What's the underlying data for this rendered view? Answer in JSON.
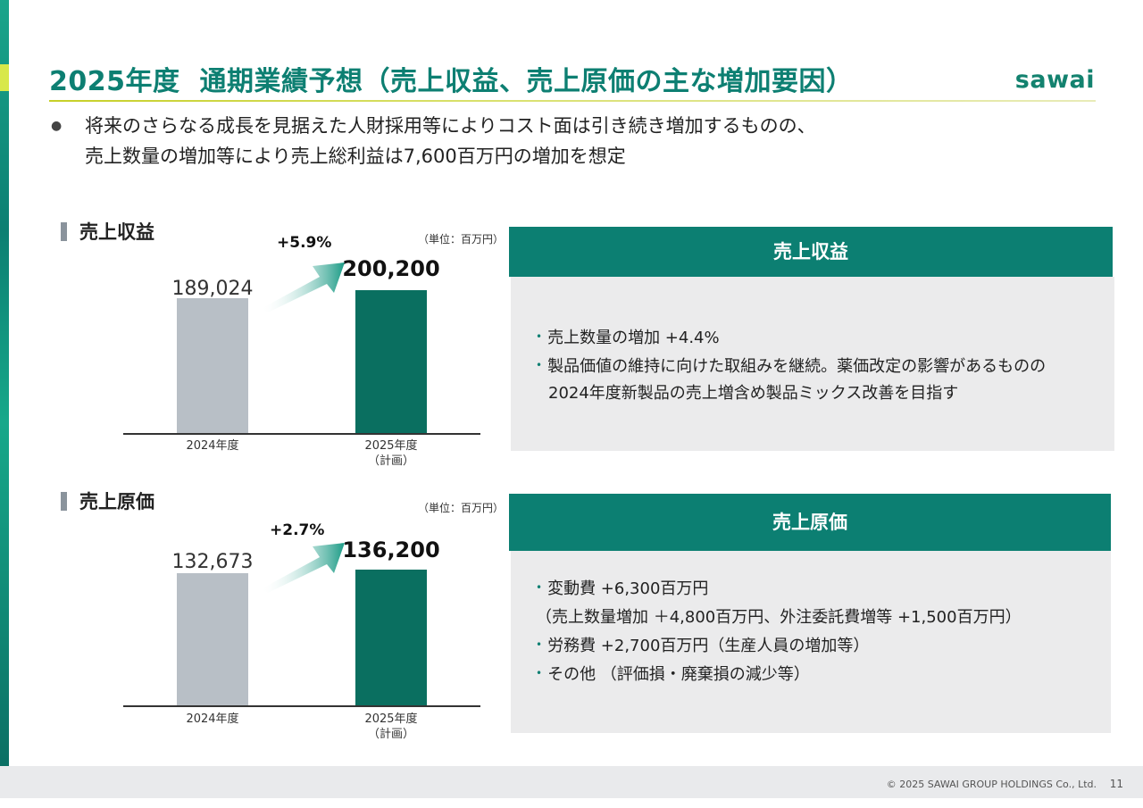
{
  "header": {
    "title_year": "2025年度",
    "title_main": "通期業績予想（売上収益、売上原価の主な増加要因）",
    "logo": "sawai"
  },
  "intro": {
    "bullet": "●",
    "line1": "将来のさらなる成長を見据えた人財採用等によりコスト面は引き続き増加するものの、",
    "line2": "売上数量の増加等により売上総利益は7,600百万円の増加を想定"
  },
  "revenue_chart": {
    "label": "売上収益",
    "unit": "（単位：百万円）",
    "growth": "+5.9%",
    "prev_value": "189,024",
    "plan_value": "200,200",
    "x_prev": "2024年度",
    "x_plan_line1": "2025年度",
    "x_plan_line2": "（計画）"
  },
  "cost_chart": {
    "label": "売上原価",
    "unit": "（単位：百万円）",
    "growth": "+2.7%",
    "prev_value": "132,673",
    "plan_value": "136,200",
    "x_prev": "2024年度",
    "x_plan_line1": "2025年度",
    "x_plan_line2": "（計画）"
  },
  "chart_data": [
    {
      "type": "bar",
      "title": "売上収益",
      "categories": [
        "2024年度",
        "2025年度（計画）"
      ],
      "values": [
        189024,
        200200
      ],
      "unit": "百万円",
      "growth": "+5.9%"
    },
    {
      "type": "bar",
      "title": "売上原価",
      "categories": [
        "2024年度",
        "2025年度（計画）"
      ],
      "values": [
        132673,
        136200
      ],
      "unit": "百万円",
      "growth": "+2.7%"
    }
  ],
  "revenue_box": {
    "heading": "売上収益",
    "item1": "売上数量の増加  +4.4%",
    "item2": "製品価値の維持に向けた取組みを継続。薬価改定の影響があるものの",
    "item2_cont": "2024年度新製品の売上増含め製品ミックス改善を目指す"
  },
  "cost_box": {
    "heading": "売上原価",
    "item1": "変動費  +6,300百万円",
    "item1_detail": "（売上数量増加  ＋4,800百万円、外注委託費増等  +1,500百万円）",
    "item2": "労務費  +2,700百万円（生産人員の増加等）",
    "item3": "その他 （評価損・廃棄損の減少等）"
  },
  "colors": {
    "brand_green": "#0c7f72",
    "plan_bar": "#0a6f60",
    "prev_bar": "#b8bfc6",
    "accent_yellow": "#c6cf27"
  },
  "footer": {
    "copyright": "© 2025 SAWAI GROUP HOLDINGS Co., Ltd.",
    "page": "11"
  }
}
